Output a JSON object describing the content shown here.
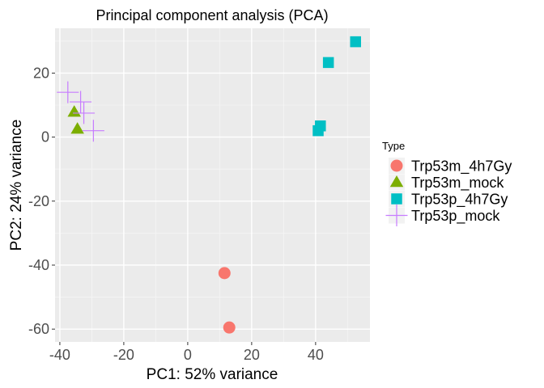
{
  "chart_data": {
    "type": "scatter",
    "title": "Principal component analysis (PCA)",
    "xlabel": "PC1: 52% variance",
    "ylabel": "PC2: 24% variance",
    "xlim": [
      -41.5,
      57
    ],
    "ylim": [
      -64,
      34
    ],
    "x_ticks": [
      -40,
      -20,
      0,
      20,
      40
    ],
    "y_ticks": [
      -60,
      -40,
      -20,
      0,
      20
    ],
    "grid": true,
    "legend_position": "right",
    "legend_title": "Type",
    "series": [
      {
        "name": "Trp53m_4h7Gy",
        "marker": "circle",
        "color": "#F8766D",
        "points": [
          {
            "x": 11.5,
            "y": -42.5
          },
          {
            "x": 13.0,
            "y": -59.5
          }
        ]
      },
      {
        "name": "Trp53m_mock",
        "marker": "triangle",
        "color": "#7CAE00",
        "points": [
          {
            "x": -35.5,
            "y": 7.8
          },
          {
            "x": -34.5,
            "y": 2.5
          }
        ]
      },
      {
        "name": "Trp53p_4h7Gy",
        "marker": "square",
        "color": "#00BFC4",
        "points": [
          {
            "x": 52.5,
            "y": 29.8
          },
          {
            "x": 44.0,
            "y": 23.3
          },
          {
            "x": 41.5,
            "y": 3.5
          },
          {
            "x": 40.8,
            "y": 2.0
          }
        ]
      },
      {
        "name": "Trp53p_mock",
        "marker": "plus",
        "color": "#C77CFF",
        "points": [
          {
            "x": -37.5,
            "y": 14.0
          },
          {
            "x": -33.5,
            "y": 11.0
          },
          {
            "x": -32.5,
            "y": 7.5
          },
          {
            "x": -29.5,
            "y": 2.0
          }
        ]
      }
    ]
  }
}
